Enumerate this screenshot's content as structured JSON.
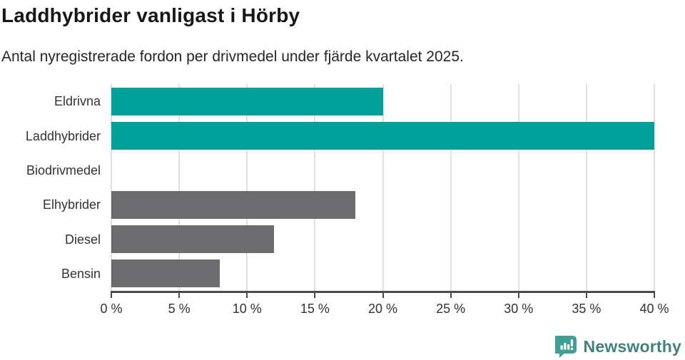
{
  "chart_data": {
    "type": "bar",
    "orientation": "horizontal",
    "title": "Laddhybrider vanligast i Hörby",
    "subtitle": "Antal nyregistrerade fordon per drivmedel under fjärde kvartalet 2025.",
    "categories": [
      "Eldrivna",
      "Laddhybrider",
      "Biodrivmedel",
      "Elhybrider",
      "Diesel",
      "Bensin"
    ],
    "values": [
      20,
      40,
      0,
      18,
      12,
      8
    ],
    "unit": "%",
    "xlim": [
      0,
      40
    ],
    "xticks": [
      0,
      5,
      10,
      15,
      20,
      25,
      30,
      35,
      40
    ],
    "xtick_labels": [
      "0 %",
      "5 %",
      "10 %",
      "15 %",
      "20 %",
      "25 %",
      "30 %",
      "35 %",
      "40 %"
    ],
    "grid": "vertical",
    "legend": "none",
    "bar_colors": [
      "#00a19a",
      "#00a19a",
      "#6c6c70",
      "#6c6c70",
      "#6c6c70",
      "#6c6c70"
    ]
  },
  "colors": {
    "accent": "#00a19a",
    "neutral": "#6c6c70",
    "gridline": "#e0e0e0",
    "axis": "#4a4a4b",
    "title_text": "#171717",
    "body_text": "#333333",
    "background": "#ffffff"
  },
  "footer": {
    "brand": "Newsworthy",
    "icon": "newsworthy-speech-bubble-bar-chart-icon",
    "icon_color": "#3f9e95",
    "text_color": "#41837c"
  }
}
